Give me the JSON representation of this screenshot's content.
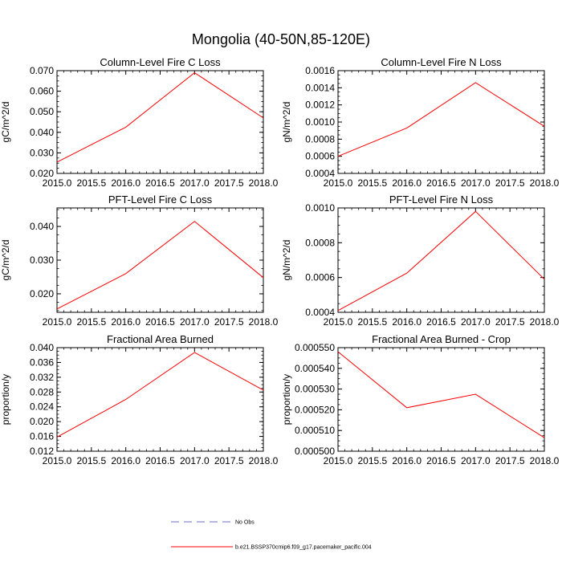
{
  "figure": {
    "title": "Mongolia (40-50N,85-120E)"
  },
  "chart_data": [
    {
      "type": "line",
      "title": "Column-Level Fire C Loss",
      "xlabel": "",
      "ylabel": "gC/m^2/d",
      "xlim": [
        2015.0,
        2018.0
      ],
      "ylim": [
        0.02,
        0.07
      ],
      "x_ticks": [
        "2015.0",
        "2015.5",
        "2016.0",
        "2016.5",
        "2017.0",
        "2017.5",
        "2018.0"
      ],
      "y_ticks": [
        "0.020",
        "0.030",
        "0.040",
        "0.050",
        "0.060",
        "0.070"
      ],
      "series": [
        {
          "name": "b.e21.BSSP370cmip6.f09_g17.pacemaker_pacific.004",
          "color": "#ff0000",
          "x": [
            2015.0,
            2016.0,
            2017.0,
            2018.0
          ],
          "y": [
            0.0255,
            0.0425,
            0.069,
            0.047
          ]
        }
      ]
    },
    {
      "type": "line",
      "title": "Column-Level Fire N Loss",
      "xlabel": "",
      "ylabel": "gN/m^2/d",
      "xlim": [
        2015.0,
        2018.0
      ],
      "ylim": [
        0.0004,
        0.0016
      ],
      "x_ticks": [
        "2015.0",
        "2015.5",
        "2016.0",
        "2016.5",
        "2017.0",
        "2017.5",
        "2018.0"
      ],
      "y_ticks": [
        "0.0004",
        "0.0006",
        "0.0008",
        "0.0010",
        "0.0012",
        "0.0014",
        "0.0016"
      ],
      "series": [
        {
          "name": "b.e21.BSSP370cmip6.f09_g17.pacemaker_pacific.004",
          "color": "#ff0000",
          "x": [
            2015.0,
            2016.0,
            2017.0,
            2018.0
          ],
          "y": [
            0.0006,
            0.00093,
            0.00146,
            0.00095
          ]
        }
      ]
    },
    {
      "type": "line",
      "title": "PFT-Level Fire C Loss",
      "xlabel": "",
      "ylabel": "gC/m^2/d",
      "xlim": [
        2015.0,
        2018.0
      ],
      "ylim": [
        0.0145,
        0.0455
      ],
      "x_ticks": [
        "2015.0",
        "2015.5",
        "2016.0",
        "2016.5",
        "2017.0",
        "2017.5",
        "2018.0"
      ],
      "y_ticks": [
        "0.020",
        "0.030",
        "0.040"
      ],
      "series": [
        {
          "name": "b.e21.BSSP370cmip6.f09_g17.pacemaker_pacific.004",
          "color": "#ff0000",
          "x": [
            2015.0,
            2016.0,
            2017.0,
            2018.0
          ],
          "y": [
            0.0155,
            0.026,
            0.0415,
            0.0248
          ]
        }
      ]
    },
    {
      "type": "line",
      "title": "PFT-Level Fire N Loss",
      "xlabel": "",
      "ylabel": "gN/m^2/d",
      "xlim": [
        2015.0,
        2018.0
      ],
      "ylim": [
        0.0004,
        0.001
      ],
      "x_ticks": [
        "2015.0",
        "2015.5",
        "2016.0",
        "2016.5",
        "2017.0",
        "2017.5",
        "2018.0"
      ],
      "y_ticks": [
        "0.0004",
        "0.0006",
        "0.0008",
        "0.0010"
      ],
      "series": [
        {
          "name": "b.e21.BSSP370cmip6.f09_g17.pacemaker_pacific.004",
          "color": "#ff0000",
          "x": [
            2015.0,
            2016.0,
            2017.0,
            2018.0
          ],
          "y": [
            0.00041,
            0.000625,
            0.00098,
            0.00059
          ]
        }
      ]
    },
    {
      "type": "line",
      "title": "Fractional Area Burned",
      "xlabel": "",
      "ylabel": "proportion/y",
      "xlim": [
        2015.0,
        2018.0
      ],
      "ylim": [
        0.012,
        0.04
      ],
      "x_ticks": [
        "2015.0",
        "2015.5",
        "2016.0",
        "2016.5",
        "2017.0",
        "2017.5",
        "2018.0"
      ],
      "y_ticks": [
        "0.012",
        "0.016",
        "0.020",
        "0.024",
        "0.028",
        "0.032",
        "0.036",
        "0.040"
      ],
      "series": [
        {
          "name": "b.e21.BSSP370cmip6.f09_g17.pacemaker_pacific.004",
          "color": "#ff0000",
          "x": [
            2015.0,
            2016.0,
            2017.0,
            2018.0
          ],
          "y": [
            0.0158,
            0.026,
            0.0387,
            0.0285
          ]
        }
      ]
    },
    {
      "type": "line",
      "title": "Fractional Area Burned - Crop",
      "xlabel": "",
      "ylabel": "proportion/y",
      "xlim": [
        2015.0,
        2018.0
      ],
      "ylim": [
        0.0005,
        0.00055
      ],
      "x_ticks": [
        "2015.0",
        "2015.5",
        "2016.0",
        "2016.5",
        "2017.0",
        "2017.5",
        "2018.0"
      ],
      "y_ticks": [
        "0.000500",
        "0.000510",
        "0.000520",
        "0.000530",
        "0.000540",
        "0.000550"
      ],
      "series": [
        {
          "name": "b.e21.BSSP370cmip6.f09_g17.pacemaker_pacific.004",
          "color": "#ff0000",
          "x": [
            2015.0,
            2016.0,
            2017.0,
            2018.0
          ],
          "y": [
            0.000548,
            0.000521,
            0.0005275,
            0.0005065
          ]
        }
      ]
    }
  ],
  "legend": {
    "placement": "bottom-center",
    "items": [
      {
        "label": "No Obs",
        "color": "#6b6bd6",
        "style": "dashed"
      },
      {
        "label": "b.e21.BSSP370cmip6.f09_g17.pacemaker_pacific.004",
        "color": "#ff0000",
        "style": "solid"
      }
    ]
  }
}
